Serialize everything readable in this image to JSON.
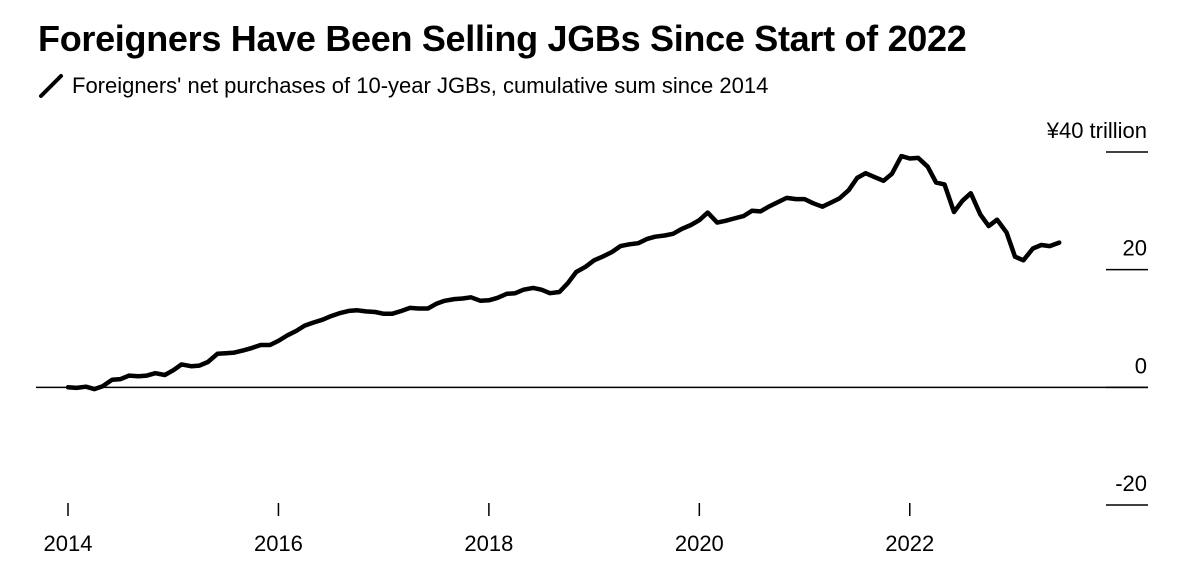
{
  "title": "Foreigners Have Been Selling JGBs Since Start of 2022",
  "chart_data": {
    "type": "line",
    "title": "Foreigners Have Been Selling JGBs Since Start of 2022",
    "xlabel": "",
    "ylabel": "",
    "ylim": [
      -20,
      40
    ],
    "xlim": [
      2014,
      2024.15
    ],
    "grid": false,
    "legend_position": "top-left",
    "x_ticks": [
      {
        "value": 2014,
        "label": "2014"
      },
      {
        "value": 2016,
        "label": "2016"
      },
      {
        "value": 2018,
        "label": "2018"
      },
      {
        "value": 2020,
        "label": "2020"
      },
      {
        "value": 2022,
        "label": "2022"
      }
    ],
    "y_ticks": [
      {
        "value": 40,
        "label": "¥40 trillion"
      },
      {
        "value": 20,
        "label": "20"
      },
      {
        "value": 0,
        "label": "0"
      },
      {
        "value": -20,
        "label": "-20"
      }
    ],
    "series": [
      {
        "name": "Foreigners' net purchases of 10-year JGBs, cumulative sum since 2014",
        "color": "#000000",
        "points": [
          [
            2014.0,
            0.0
          ],
          [
            2014.08,
            -0.1
          ],
          [
            2014.17,
            0.1
          ],
          [
            2014.25,
            -0.3
          ],
          [
            2014.33,
            0.2
          ],
          [
            2014.42,
            1.3
          ],
          [
            2014.5,
            1.4
          ],
          [
            2014.58,
            2.0
          ],
          [
            2014.67,
            1.9
          ],
          [
            2014.75,
            2.0
          ],
          [
            2014.83,
            2.4
          ],
          [
            2014.92,
            2.1
          ],
          [
            2015.0,
            2.9
          ],
          [
            2015.08,
            3.9
          ],
          [
            2015.17,
            3.6
          ],
          [
            2015.25,
            3.7
          ],
          [
            2015.33,
            4.3
          ],
          [
            2015.42,
            5.7
          ],
          [
            2015.5,
            5.8
          ],
          [
            2015.58,
            5.9
          ],
          [
            2015.67,
            6.3
          ],
          [
            2015.75,
            6.7
          ],
          [
            2015.83,
            7.2
          ],
          [
            2015.92,
            7.2
          ],
          [
            2016.0,
            7.9
          ],
          [
            2016.08,
            8.8
          ],
          [
            2016.17,
            9.6
          ],
          [
            2016.25,
            10.5
          ],
          [
            2016.33,
            11.0
          ],
          [
            2016.42,
            11.5
          ],
          [
            2016.5,
            12.1
          ],
          [
            2016.58,
            12.6
          ],
          [
            2016.67,
            13.0
          ],
          [
            2016.75,
            13.1
          ],
          [
            2016.83,
            12.9
          ],
          [
            2016.92,
            12.8
          ],
          [
            2017.0,
            12.5
          ],
          [
            2017.08,
            12.5
          ],
          [
            2017.17,
            13.0
          ],
          [
            2017.25,
            13.5
          ],
          [
            2017.33,
            13.4
          ],
          [
            2017.42,
            13.4
          ],
          [
            2017.5,
            14.2
          ],
          [
            2017.58,
            14.7
          ],
          [
            2017.67,
            15.0
          ],
          [
            2017.75,
            15.1
          ],
          [
            2017.83,
            15.3
          ],
          [
            2017.92,
            14.7
          ],
          [
            2018.0,
            14.8
          ],
          [
            2018.08,
            15.2
          ],
          [
            2018.17,
            15.9
          ],
          [
            2018.25,
            16.0
          ],
          [
            2018.33,
            16.6
          ],
          [
            2018.42,
            16.9
          ],
          [
            2018.5,
            16.6
          ],
          [
            2018.58,
            16.0
          ],
          [
            2018.67,
            16.2
          ],
          [
            2018.75,
            17.7
          ],
          [
            2018.83,
            19.6
          ],
          [
            2018.92,
            20.5
          ],
          [
            2019.0,
            21.6
          ],
          [
            2019.08,
            22.2
          ],
          [
            2019.17,
            23.0
          ],
          [
            2019.25,
            24.0
          ],
          [
            2019.33,
            24.3
          ],
          [
            2019.42,
            24.5
          ],
          [
            2019.5,
            25.2
          ],
          [
            2019.58,
            25.6
          ],
          [
            2019.67,
            25.8
          ],
          [
            2019.75,
            26.1
          ],
          [
            2019.83,
            26.9
          ],
          [
            2019.92,
            27.6
          ],
          [
            2020.0,
            28.4
          ],
          [
            2020.08,
            29.7
          ],
          [
            2020.17,
            28.0
          ],
          [
            2020.25,
            28.3
          ],
          [
            2020.33,
            28.7
          ],
          [
            2020.42,
            29.1
          ],
          [
            2020.5,
            30.0
          ],
          [
            2020.58,
            29.9
          ],
          [
            2020.67,
            30.8
          ],
          [
            2020.75,
            31.5
          ],
          [
            2020.83,
            32.2
          ],
          [
            2020.92,
            32.0
          ],
          [
            2021.0,
            32.0
          ],
          [
            2021.08,
            31.3
          ],
          [
            2021.17,
            30.7
          ],
          [
            2021.25,
            31.4
          ],
          [
            2021.33,
            32.1
          ],
          [
            2021.42,
            33.5
          ],
          [
            2021.5,
            35.6
          ],
          [
            2021.58,
            36.4
          ],
          [
            2021.67,
            35.7
          ],
          [
            2021.75,
            35.1
          ],
          [
            2021.83,
            36.3
          ],
          [
            2021.92,
            39.3
          ],
          [
            2022.0,
            38.9
          ],
          [
            2022.08,
            39.0
          ],
          [
            2022.17,
            37.5
          ],
          [
            2022.25,
            34.8
          ],
          [
            2022.33,
            34.5
          ],
          [
            2022.42,
            29.8
          ],
          [
            2022.5,
            31.7
          ],
          [
            2022.58,
            33.0
          ],
          [
            2022.67,
            29.4
          ],
          [
            2022.75,
            27.4
          ],
          [
            2022.83,
            28.5
          ],
          [
            2022.92,
            26.3
          ],
          [
            2023.0,
            22.2
          ],
          [
            2023.08,
            21.6
          ],
          [
            2023.17,
            23.6
          ],
          [
            2023.25,
            24.2
          ],
          [
            2023.33,
            24.0
          ],
          [
            2023.42,
            24.6
          ]
        ]
      }
    ]
  }
}
